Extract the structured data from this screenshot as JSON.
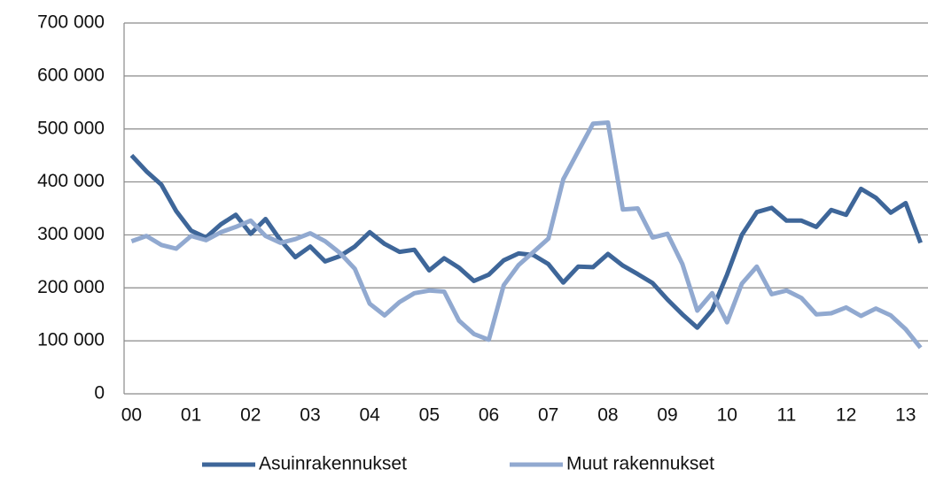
{
  "chart_data": {
    "type": "line",
    "categories": [
      "00",
      null,
      null,
      null,
      "01",
      null,
      null,
      null,
      "02",
      null,
      null,
      null,
      "03",
      null,
      null,
      null,
      "04",
      null,
      null,
      null,
      "05",
      null,
      null,
      null,
      "06",
      null,
      null,
      null,
      "07",
      null,
      null,
      null,
      "08",
      null,
      null,
      null,
      "09",
      null,
      null,
      null,
      "10",
      null,
      null,
      null,
      "11",
      null,
      null,
      null,
      "12",
      null,
      null,
      null,
      "13",
      null
    ],
    "series": [
      {
        "name": "Asuinrakennukset",
        "color": "#3e6699",
        "values": [
          450000,
          420000,
          395000,
          345000,
          308000,
          295000,
          320000,
          338000,
          302000,
          330000,
          290000,
          258000,
          278000,
          250000,
          260000,
          278000,
          305000,
          283000,
          268000,
          272000,
          233000,
          256000,
          238000,
          213000,
          225000,
          252000,
          265000,
          262000,
          245000,
          210000,
          240000,
          239000,
          264000,
          242000,
          226000,
          209000,
          178000,
          150000,
          125000,
          158000,
          225000,
          300000,
          343000,
          351000,
          327000,
          327000,
          315000,
          347000,
          338000,
          387000,
          370000,
          342000,
          360000,
          285000
        ]
      },
      {
        "name": "Muut rakennukset",
        "color": "#91a9d0",
        "values": [
          288000,
          298000,
          281000,
          274000,
          298000,
          290000,
          305000,
          315000,
          327000,
          298000,
          285000,
          292000,
          303000,
          288000,
          266000,
          236000,
          170000,
          148000,
          173000,
          190000,
          195000,
          193000,
          138000,
          113000,
          102000,
          205000,
          243000,
          268000,
          293000,
          405000,
          458000,
          510000,
          512000,
          348000,
          350000,
          295000,
          302000,
          245000,
          157000,
          190000,
          135000,
          208000,
          240000,
          188000,
          195000,
          181000,
          150000,
          152000,
          163000,
          147000,
          161000,
          148000,
          122000,
          87000
        ]
      }
    ],
    "ylim": [
      0,
      700000
    ],
    "yticks": [
      0,
      {
        "value": 100000,
        "label": "100 000"
      },
      {
        "value": 200000,
        "label": "200 000"
      },
      {
        "value": 300000,
        "label": "300 000"
      },
      {
        "value": 400000,
        "label": "400 000"
      },
      {
        "value": 500000,
        "label": "500 000"
      },
      {
        "value": 600000,
        "label": "600 000"
      },
      {
        "value": 700000,
        "label": "700 000"
      }
    ],
    "grid": true,
    "legend": "bottom"
  }
}
